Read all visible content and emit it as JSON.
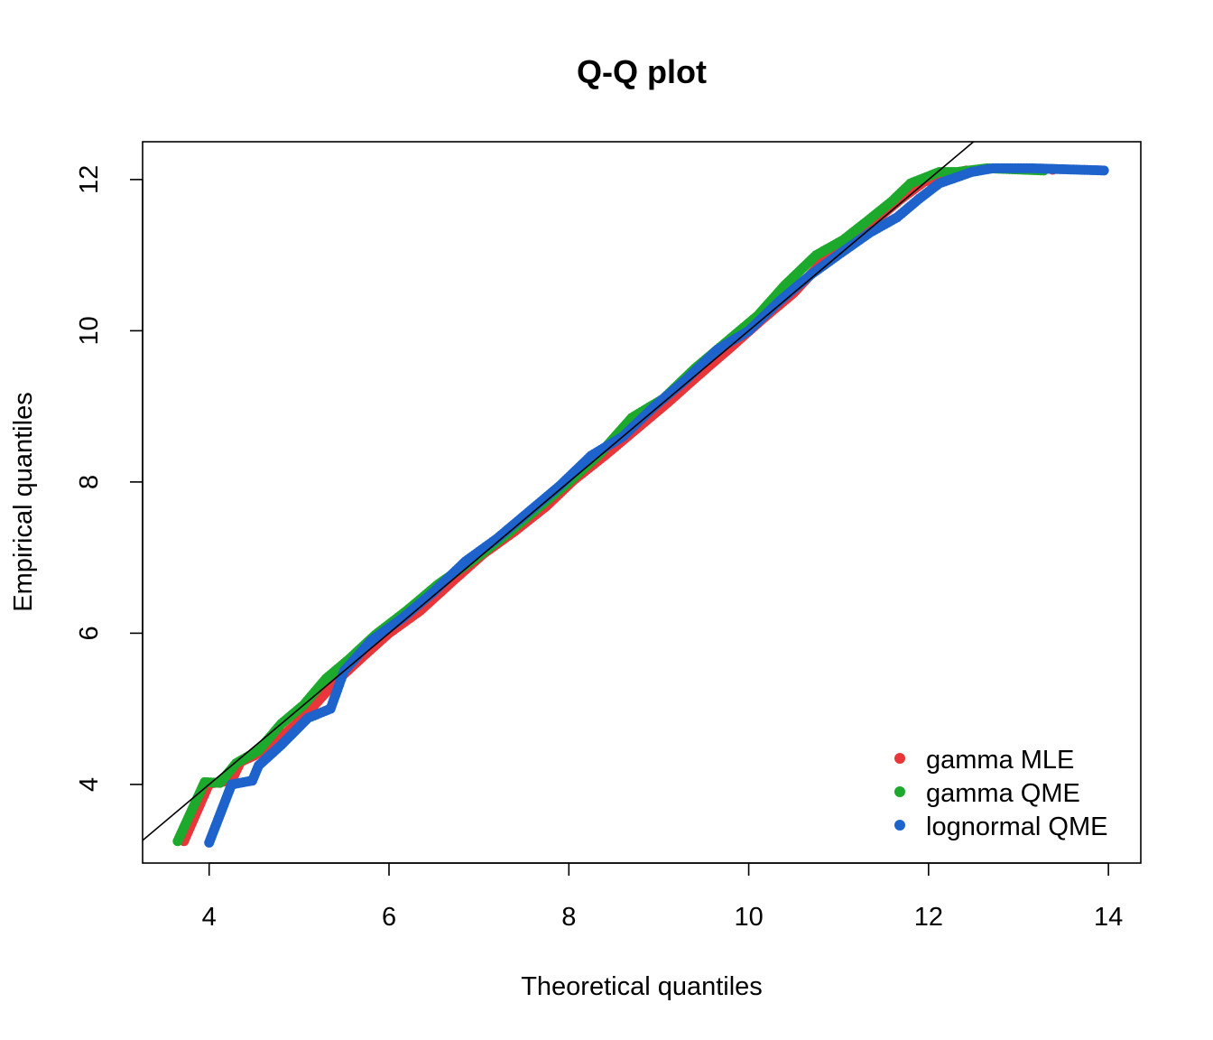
{
  "chart_data": {
    "type": "scatter",
    "title": "Q-Q plot",
    "xlabel": "Theoretical quantiles",
    "ylabel": "Empirical quantiles",
    "xlim": [
      3.26,
      14.36
    ],
    "ylim": [
      2.96,
      12.5
    ],
    "xticks": [
      4,
      6,
      8,
      10,
      12,
      14
    ],
    "yticks": [
      4,
      6,
      8,
      10,
      12
    ],
    "grid": false,
    "legend_position": "bottom-right",
    "reference_line": {
      "intercept": 0,
      "slope": 1,
      "color": "#000000"
    },
    "series": [
      {
        "name": "gamma MLE",
        "color": "#E8363A",
        "points": [
          [
            3.72,
            3.25
          ],
          [
            4.0,
            4.01
          ],
          [
            4.25,
            4.05
          ],
          [
            4.35,
            4.3
          ],
          [
            4.5,
            4.38
          ],
          [
            4.7,
            4.52
          ],
          [
            4.95,
            4.78
          ],
          [
            5.15,
            5.02
          ],
          [
            5.4,
            5.35
          ],
          [
            5.7,
            5.68
          ],
          [
            6.0,
            6.0
          ],
          [
            6.35,
            6.3
          ],
          [
            6.7,
            6.68
          ],
          [
            7.05,
            7.05
          ],
          [
            7.4,
            7.35
          ],
          [
            7.75,
            7.68
          ],
          [
            8.05,
            8.02
          ],
          [
            8.4,
            8.35
          ],
          [
            8.75,
            8.7
          ],
          [
            9.1,
            9.05
          ],
          [
            9.45,
            9.42
          ],
          [
            9.8,
            9.78
          ],
          [
            10.15,
            10.15
          ],
          [
            10.5,
            10.5
          ],
          [
            10.85,
            10.95
          ],
          [
            11.15,
            11.25
          ],
          [
            11.45,
            11.5
          ],
          [
            11.7,
            11.75
          ],
          [
            11.95,
            11.97
          ],
          [
            12.15,
            12.05
          ],
          [
            12.42,
            12.12
          ],
          [
            13.38,
            12.13
          ]
        ]
      },
      {
        "name": "gamma QME",
        "color": "#1DAA2C",
        "points": [
          [
            3.65,
            3.25
          ],
          [
            3.95,
            4.03
          ],
          [
            4.12,
            4.02
          ],
          [
            4.3,
            4.28
          ],
          [
            4.55,
            4.45
          ],
          [
            4.8,
            4.8
          ],
          [
            5.05,
            5.05
          ],
          [
            5.3,
            5.4
          ],
          [
            5.55,
            5.65
          ],
          [
            5.85,
            5.98
          ],
          [
            6.2,
            6.3
          ],
          [
            6.55,
            6.65
          ],
          [
            6.95,
            6.98
          ],
          [
            7.3,
            7.3
          ],
          [
            7.65,
            7.65
          ],
          [
            8.0,
            8.0
          ],
          [
            8.35,
            8.38
          ],
          [
            8.7,
            8.85
          ],
          [
            9.05,
            9.1
          ],
          [
            9.4,
            9.5
          ],
          [
            9.75,
            9.85
          ],
          [
            10.1,
            10.2
          ],
          [
            10.4,
            10.6
          ],
          [
            10.75,
            11.0
          ],
          [
            11.05,
            11.2
          ],
          [
            11.35,
            11.48
          ],
          [
            11.6,
            11.72
          ],
          [
            11.8,
            11.95
          ],
          [
            12.12,
            12.1
          ],
          [
            12.32,
            12.1
          ],
          [
            12.65,
            12.15
          ],
          [
            13.28,
            12.12
          ]
        ]
      },
      {
        "name": "lognormal QME",
        "color": "#1E63CC",
        "points": [
          [
            4.0,
            3.23
          ],
          [
            4.25,
            4.0
          ],
          [
            4.48,
            4.05
          ],
          [
            4.55,
            4.25
          ],
          [
            4.8,
            4.52
          ],
          [
            5.1,
            4.88
          ],
          [
            5.35,
            5.0
          ],
          [
            5.5,
            5.5
          ],
          [
            5.8,
            5.9
          ],
          [
            6.15,
            6.2
          ],
          [
            6.5,
            6.55
          ],
          [
            6.85,
            6.95
          ],
          [
            7.2,
            7.25
          ],
          [
            7.55,
            7.6
          ],
          [
            7.9,
            7.95
          ],
          [
            8.25,
            8.35
          ],
          [
            8.6,
            8.6
          ],
          [
            8.95,
            9.0
          ],
          [
            9.3,
            9.35
          ],
          [
            9.65,
            9.75
          ],
          [
            10.0,
            10.0
          ],
          [
            10.35,
            10.4
          ],
          [
            10.7,
            10.75
          ],
          [
            11.05,
            11.05
          ],
          [
            11.35,
            11.3
          ],
          [
            11.65,
            11.5
          ],
          [
            11.9,
            11.75
          ],
          [
            12.12,
            11.95
          ],
          [
            12.48,
            12.1
          ],
          [
            12.72,
            12.15
          ],
          [
            13.12,
            12.15
          ],
          [
            13.95,
            12.12
          ]
        ]
      }
    ]
  }
}
